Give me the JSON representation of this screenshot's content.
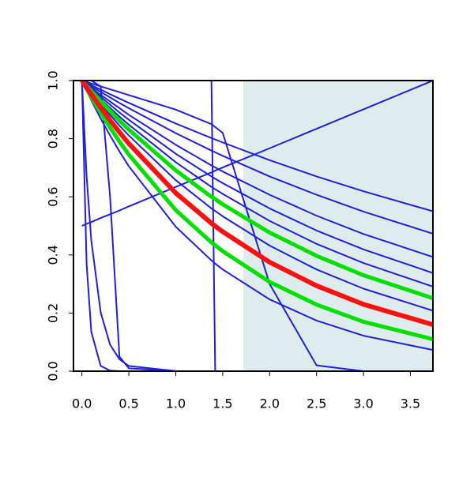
{
  "chart_data": {
    "type": "line",
    "xlim": [
      -0.09,
      3.74
    ],
    "ylim": [
      0,
      1
    ],
    "xticks": [
      {
        "value": 0,
        "label": "0.0"
      },
      0.5,
      {
        "value": 1,
        "label": "1.0"
      },
      1.5,
      {
        "value": 2,
        "label": "2.0"
      },
      2.5,
      {
        "value": 3,
        "label": "3.0"
      },
      3.5
    ],
    "yticks": [
      {
        "value": 0,
        "label": "0.0"
      },
      0.2,
      0.4,
      0.6,
      0.8,
      {
        "value": 1,
        "label": "1.0"
      }
    ],
    "shade": {
      "xlim": [
        1.72,
        3.74
      ],
      "color": "#dfeced"
    },
    "x": [
      0,
      0.05,
      0.1,
      0.2,
      0.3,
      0.4,
      0.5,
      1,
      1.38,
      1.42,
      1.5,
      2,
      2.5,
      3,
      3.74
    ],
    "series": [
      {
        "color": "#2020d8",
        "linewidth": 2,
        "values": [
          1,
          0.992,
          0.984,
          0.969,
          0.953,
          0.938,
          0.923,
          0.852,
          0.802,
          0.797,
          0.787,
          0.726,
          0.67,
          0.619,
          0.55
        ]
      },
      {
        "color": "#2020d8",
        "linewidth": 2,
        "values": [
          1,
          0.99,
          0.98,
          0.961,
          0.942,
          0.923,
          0.905,
          0.819,
          0.759,
          0.753,
          0.741,
          0.67,
          0.607,
          0.549,
          0.473
        ]
      },
      {
        "color": "#2020d8",
        "linewidth": 2,
        "values": [
          1,
          0.988,
          0.975,
          0.951,
          0.928,
          0.905,
          0.882,
          0.779,
          0.708,
          0.701,
          0.687,
          0.607,
          0.535,
          0.472,
          0.393
        ]
      },
      {
        "color": "#2020d8",
        "linewidth": 2,
        "values": [
          1,
          0.986,
          0.971,
          0.944,
          0.917,
          0.89,
          0.865,
          0.748,
          0.67,
          0.662,
          0.647,
          0.56,
          0.484,
          0.419,
          0.338
        ]
      },
      {
        "color": "#2020d8",
        "linewidth": 2,
        "values": [
          1,
          0.984,
          0.968,
          0.936,
          0.906,
          0.876,
          0.848,
          0.719,
          0.634,
          0.626,
          0.61,
          0.517,
          0.438,
          0.372,
          0.291
        ]
      },
      {
        "color": "#2020d8",
        "linewidth": 2,
        "values": [
          1,
          0.979,
          0.959,
          0.919,
          0.882,
          0.845,
          0.811,
          0.657,
          0.56,
          0.551,
          0.533,
          0.432,
          0.35,
          0.284,
          0.208
        ]
      },
      {
        "color": "#2020d8",
        "linewidth": 2,
        "values": [
          1,
          0.966,
          0.932,
          0.869,
          0.811,
          0.756,
          0.705,
          0.497,
          0.381,
          0.37,
          0.35,
          0.247,
          0.174,
          0.122,
          0.073
        ]
      },
      {
        "color": "#2020d8",
        "linewidth": 2,
        "values": [
          1,
          0.67,
          0.449,
          0.202,
          0.091,
          0.041,
          0.018,
          0.0003,
          0,
          0,
          0,
          0,
          0,
          0,
          0
        ]
      },
      {
        "color": "#2020d8",
        "linewidth": 2,
        "values": [
          1,
          0.368,
          0.135,
          0.018,
          0.002,
          0,
          0,
          0,
          0,
          0,
          0,
          0,
          0,
          0,
          0
        ]
      },
      {
        "color": "#2020d8",
        "linewidth": 2,
        "values": [
          1,
          1,
          1,
          0.98,
          0.6,
          0.05,
          0.01,
          0,
          0,
          0,
          0,
          0,
          0,
          0,
          0
        ]
      },
      {
        "color": "#2020d8",
        "linewidth": 2,
        "values": [
          1,
          1,
          1,
          1,
          1,
          1,
          1,
          1,
          1,
          0,
          0,
          0,
          0,
          0,
          0
        ]
      },
      {
        "color": "#2020d8",
        "linewidth": 2,
        "values": [
          1,
          0.995,
          0.99,
          0.98,
          0.97,
          0.96,
          0.95,
          0.9,
          0.85,
          0.84,
          0.82,
          0.3,
          0.02,
          0,
          0
        ]
      },
      {
        "color": "#2020d8",
        "linewidth": 2,
        "values": [
          0.5,
          0.507,
          0.513,
          0.527,
          0.54,
          0.553,
          0.567,
          0.634,
          0.684,
          0.69,
          0.701,
          0.767,
          0.834,
          0.901,
          1.0
        ]
      },
      {
        "color": "#00e000",
        "linewidth": 5,
        "values": [
          1,
          0.982,
          0.964,
          0.929,
          0.895,
          0.862,
          0.831,
          0.691,
          0.6,
          0.592,
          0.574,
          0.477,
          0.397,
          0.33,
          0.251
        ]
      },
      {
        "color": "#00e000",
        "linewidth": 5,
        "values": [
          1,
          0.971,
          0.943,
          0.889,
          0.838,
          0.79,
          0.745,
          0.554,
          0.443,
          0.433,
          0.413,
          0.307,
          0.229,
          0.17,
          0.11
        ]
      },
      {
        "color": "#ff1010",
        "linewidth": 6,
        "values": [
          1,
          0.976,
          0.952,
          0.907,
          0.863,
          0.822,
          0.783,
          0.613,
          0.509,
          0.499,
          0.48,
          0.375,
          0.294,
          0.23,
          0.16
        ]
      }
    ]
  }
}
